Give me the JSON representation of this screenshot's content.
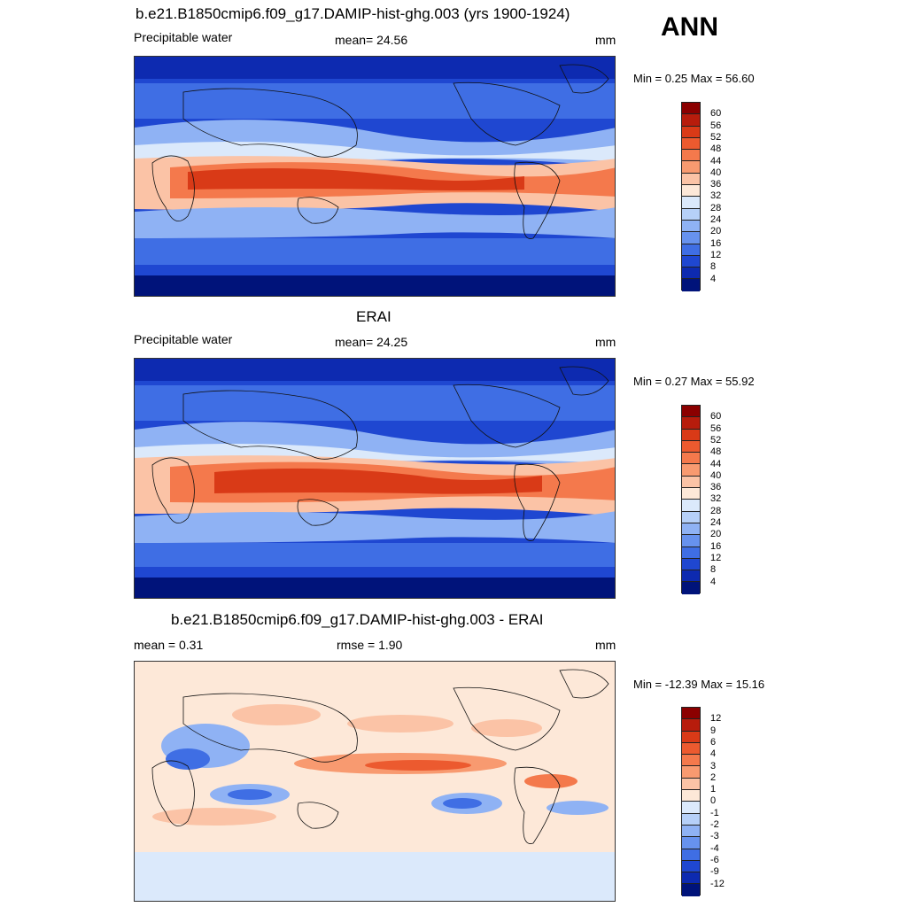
{
  "season": "ANN",
  "panels": [
    {
      "title": "b.e21.B1850cmip6.f09_g17.DAMIP-hist-ghg.003 (yrs 1900-1924)",
      "left_label": "Precipitable water",
      "center_label": "mean=  24.56",
      "units": "mm",
      "minmax": "Min =   0.25 Max =  56.60",
      "colorbar_labels": [
        "60",
        "56",
        "52",
        "48",
        "44",
        "40",
        "36",
        "32",
        "28",
        "24",
        "20",
        "16",
        "12",
        "8",
        "4"
      ]
    },
    {
      "title": "ERAI",
      "left_label": "Precipitable water",
      "center_label": "mean=  24.25",
      "units": "mm",
      "minmax": "Min =   0.27 Max =  55.92",
      "colorbar_labels": [
        "60",
        "56",
        "52",
        "48",
        "44",
        "40",
        "36",
        "32",
        "28",
        "24",
        "20",
        "16",
        "12",
        "8",
        "4"
      ]
    },
    {
      "title": "b.e21.B1850cmip6.f09_g17.DAMIP-hist-ghg.003 - ERAI",
      "left_label": "mean =   0.31",
      "center_label": "rmse =   1.90",
      "units": "mm",
      "minmax": "Min = -12.39 Max =  15.16",
      "colorbar_labels": [
        "12",
        "9",
        "6",
        "4",
        "3",
        "2",
        "1",
        "0",
        "-1",
        "-2",
        "-3",
        "-4",
        "-6",
        "-9",
        "-12"
      ]
    }
  ],
  "colors": {
    "abs_scale": [
      "#8b0000",
      "#b71c0c",
      "#d93a17",
      "#ec5a2f",
      "#f4794c",
      "#f89a70",
      "#fbc3a6",
      "#fde8d8",
      "#dbe9fb",
      "#b6d0f8",
      "#8fb2f4",
      "#6792ee",
      "#3f6ee4",
      "#1f47d1",
      "#0d2ab0",
      "#00137a"
    ],
    "diff_scale": [
      "#8b0000",
      "#b71c0c",
      "#d93a17",
      "#ec5a2f",
      "#f4794c",
      "#f89a70",
      "#fbc3a6",
      "#fde8d8",
      "#dbe9fb",
      "#b6d0f8",
      "#8fb2f4",
      "#6792ee",
      "#3f6ee4",
      "#1f47d1",
      "#0d2ab0",
      "#00137a"
    ]
  }
}
